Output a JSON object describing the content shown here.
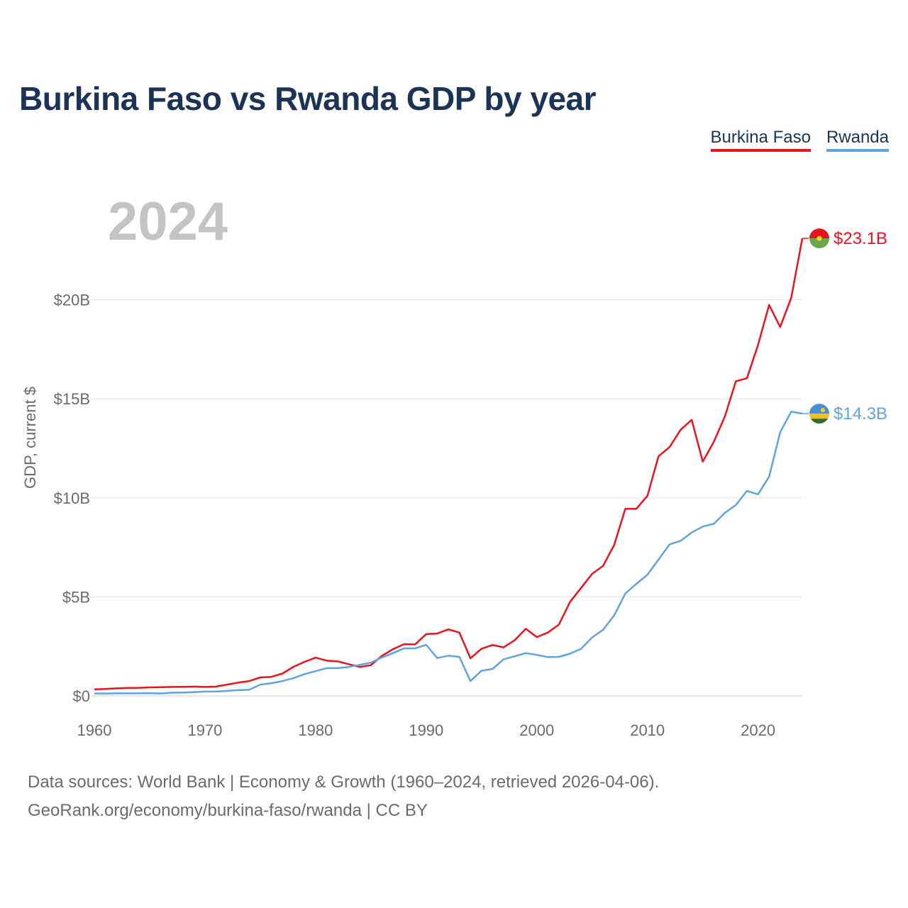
{
  "title": "Burkina Faso vs Rwanda GDP by year",
  "legend": [
    {
      "label": "Burkina Faso",
      "color": "#e8141d"
    },
    {
      "label": "Rwanda",
      "color": "#5fa3e0"
    }
  ],
  "source": {
    "line1": "Data sources: World Bank | Economy & Growth (1960–2024, retrieved 2026-04-06).",
    "line2": "GeoRank.org/economy/burkina-faso/rwanda | CC BY"
  },
  "chart_data": {
    "type": "line",
    "title": "Burkina Faso vs Rwanda GDP by year",
    "xlabel": "",
    "ylabel": "GDP, current $",
    "year_label": "2024",
    "xlim": [
      1960,
      2024
    ],
    "ylim": [
      0,
      25
    ],
    "grid": true,
    "x_ticks": [
      1960,
      1970,
      1980,
      1990,
      2000,
      2010,
      2020
    ],
    "y_ticks": [
      {
        "value": 0,
        "label": "$0"
      },
      {
        "value": 5,
        "label": "$5B"
      },
      {
        "value": 10,
        "label": "$10B"
      },
      {
        "value": 15,
        "label": "$15B"
      },
      {
        "value": 20,
        "label": "$20B"
      }
    ],
    "x": [
      1960,
      1961,
      1962,
      1963,
      1964,
      1965,
      1966,
      1967,
      1968,
      1969,
      1970,
      1971,
      1972,
      1973,
      1974,
      1975,
      1976,
      1977,
      1978,
      1979,
      1980,
      1981,
      1982,
      1983,
      1984,
      1985,
      1986,
      1987,
      1988,
      1989,
      1990,
      1991,
      1992,
      1993,
      1994,
      1995,
      1996,
      1997,
      1998,
      1999,
      2000,
      2001,
      2002,
      2003,
      2004,
      2005,
      2006,
      2007,
      2008,
      2009,
      2010,
      2011,
      2012,
      2013,
      2014,
      2015,
      2016,
      2017,
      2018,
      2019,
      2020,
      2021,
      2022,
      2023,
      2024
    ],
    "series": [
      {
        "name": "Burkina Faso",
        "color": "#e8141d",
        "end_label": "$23.1B",
        "values": [
          0.33,
          0.35,
          0.38,
          0.4,
          0.41,
          0.43,
          0.44,
          0.45,
          0.46,
          0.47,
          0.45,
          0.47,
          0.57,
          0.67,
          0.75,
          0.93,
          0.96,
          1.13,
          1.47,
          1.72,
          1.93,
          1.78,
          1.74,
          1.6,
          1.46,
          1.55,
          2.02,
          2.36,
          2.61,
          2.6,
          3.12,
          3.15,
          3.36,
          3.2,
          1.9,
          2.38,
          2.57,
          2.45,
          2.81,
          3.39,
          2.97,
          3.2,
          3.6,
          4.74,
          5.45,
          6.16,
          6.57,
          7.63,
          9.45,
          9.45,
          10.1,
          12.1,
          12.56,
          13.44,
          13.94,
          11.83,
          12.83,
          14.1,
          15.89,
          16.04,
          17.72,
          19.74,
          18.63,
          20.1,
          23.1
        ]
      },
      {
        "name": "Rwanda",
        "color": "#5fa3e0",
        "end_label": "$14.3B",
        "values": [
          0.12,
          0.12,
          0.13,
          0.13,
          0.13,
          0.14,
          0.12,
          0.16,
          0.17,
          0.19,
          0.22,
          0.22,
          0.25,
          0.29,
          0.31,
          0.57,
          0.64,
          0.75,
          0.9,
          1.1,
          1.25,
          1.4,
          1.4,
          1.46,
          1.57,
          1.68,
          1.94,
          2.16,
          2.4,
          2.4,
          2.58,
          1.91,
          2.03,
          1.97,
          0.75,
          1.27,
          1.36,
          1.85,
          2.0,
          2.16,
          2.07,
          1.96,
          1.97,
          2.13,
          2.38,
          2.95,
          3.34,
          4.07,
          5.17,
          5.66,
          6.12,
          6.88,
          7.65,
          7.83,
          8.25,
          8.55,
          8.69,
          9.24,
          9.64,
          10.35,
          10.18,
          11.07,
          13.31,
          14.35,
          14.25
        ]
      }
    ]
  }
}
